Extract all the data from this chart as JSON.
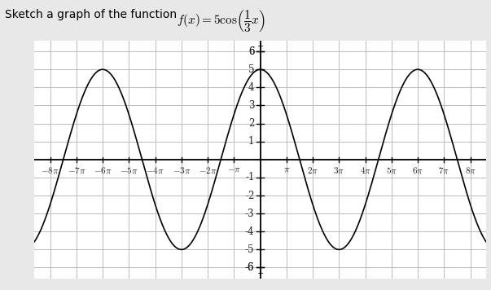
{
  "title_prefix": "Sketch a graph of the function ",
  "func_math": "$f(x) = 5\\cos\\!\\left(\\dfrac{1}{3}x\\right)$",
  "xlim_pi": [
    -8.6,
    8.6
  ],
  "ylim": [
    -6.6,
    6.6
  ],
  "xtick_multiples": [
    -8,
    -7,
    -6,
    -5,
    -4,
    -3,
    -2,
    -1,
    1,
    2,
    3,
    4,
    5,
    6,
    7,
    8
  ],
  "yticks": [
    -6,
    -5,
    -4,
    -3,
    -2,
    -1,
    1,
    2,
    3,
    4,
    5,
    6
  ],
  "background_color": "#e8e8e8",
  "plot_bg_color": "#ffffff",
  "grid_color": "#bbbbbb",
  "axis_color": "#000000",
  "tick_label_color": "#222222",
  "curve_color": "#000000",
  "amplitude": 5,
  "period_divisor": 3,
  "figsize": [
    6.03,
    3.56
  ],
  "dpi": 100,
  "title_fontsize": 10,
  "func_fontsize": 11,
  "tick_fontsize": 8
}
